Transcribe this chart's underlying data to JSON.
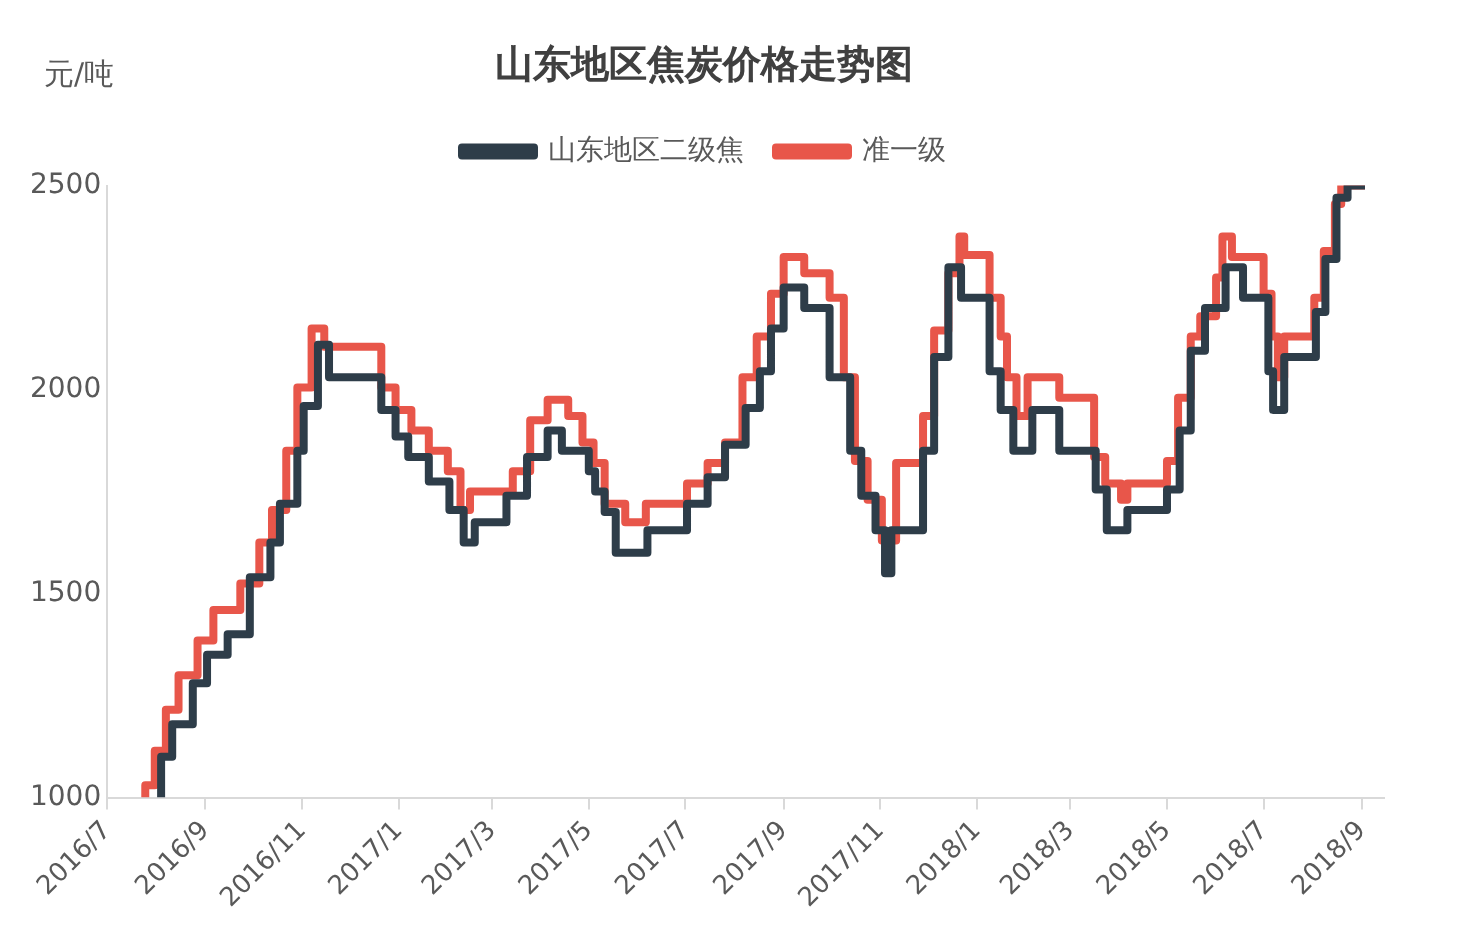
{
  "chart_data": {
    "type": "step",
    "title": "山东地区焦炭价格走势图",
    "ylabel": "元/吨",
    "legend": "top",
    "grid": false,
    "xlim": [
      "2016-07-01",
      "2018-09-15"
    ],
    "xticks": [
      {
        "value": "2016-07-01",
        "label": "2016/7"
      },
      {
        "value": "2016-09-01",
        "label": "2016/9"
      },
      {
        "value": "2016-11-01",
        "label": "2016/11"
      },
      {
        "value": "2017-01-01",
        "label": "2017/1"
      },
      {
        "value": "2017-03-01",
        "label": "2017/3"
      },
      {
        "value": "2017-05-01",
        "label": "2017/5"
      },
      {
        "value": "2017-07-01",
        "label": "2017/7"
      },
      {
        "value": "2017-09-01",
        "label": "2017/9"
      },
      {
        "value": "2017-11-01",
        "label": "2017/11"
      },
      {
        "value": "2018-01-01",
        "label": "2018/1"
      },
      {
        "value": "2018-03-01",
        "label": "2018/3"
      },
      {
        "value": "2018-05-01",
        "label": "2018/5"
      },
      {
        "value": "2018-07-01",
        "label": "2018/7"
      },
      {
        "value": "2018-09-01",
        "label": "2018/9"
      }
    ],
    "ylim": [
      1000,
      2500
    ],
    "yticks": [
      1000,
      1500,
      2000,
      2500
    ],
    "series": [
      {
        "name": "山东地区二级焦",
        "color": "#2e3d49",
        "x": [
          "2016-08-04",
          "2016-08-11",
          "2016-08-24",
          "2016-09-02",
          "2016-09-15",
          "2016-09-29",
          "2016-10-12",
          "2016-10-18",
          "2016-10-29",
          "2016-11-02",
          "2016-11-11",
          "2016-11-18",
          "2016-12-21",
          "2016-12-30",
          "2017-01-07",
          "2017-01-20",
          "2017-02-02",
          "2017-02-11",
          "2017-02-18",
          "2017-03-10",
          "2017-03-23",
          "2017-04-05",
          "2017-04-14",
          "2017-05-01",
          "2017-05-05",
          "2017-05-11",
          "2017-05-18",
          "2017-06-07",
          "2017-07-02",
          "2017-07-15",
          "2017-07-26",
          "2017-08-08",
          "2017-08-17",
          "2017-08-24",
          "2017-09-01",
          "2017-09-14",
          "2017-09-30",
          "2017-10-13",
          "2017-10-20",
          "2017-10-29",
          "2017-11-04",
          "2017-11-08",
          "2017-11-28",
          "2017-12-05",
          "2017-12-14",
          "2017-12-22",
          "2018-01-09",
          "2018-01-16",
          "2018-01-24",
          "2018-02-05",
          "2018-02-22",
          "2018-03-17",
          "2018-03-24",
          "2018-04-06",
          "2018-05-01",
          "2018-05-09",
          "2018-05-16",
          "2018-05-25",
          "2018-06-07",
          "2018-06-18",
          "2018-07-04",
          "2018-07-07",
          "2018-07-14",
          "2018-08-03",
          "2018-08-09",
          "2018-08-16",
          "2018-08-23",
          "2018-08-28",
          "2018-09-03"
        ],
        "values": [
          1000,
          1100,
          1180,
          1280,
          1350,
          1400,
          1540,
          1625,
          1720,
          1850,
          1960,
          2110,
          2030,
          1950,
          1885,
          1835,
          1775,
          1705,
          1625,
          1675,
          1740,
          1835,
          1900,
          1850,
          1800,
          1750,
          1700,
          1600,
          1655,
          1720,
          1785,
          1865,
          1955,
          2045,
          2150,
          2250,
          2200,
          2030,
          1850,
          1740,
          1655,
          1550,
          1655,
          1850,
          2080,
          2300,
          2225,
          2045,
          1950,
          1850,
          1950,
          1850,
          1755,
          1655,
          1705,
          1755,
          1900,
          2095,
          2200,
          2300,
          2225,
          2045,
          1950,
          2080,
          2190,
          2320,
          2470,
          2500,
          2500
        ]
      },
      {
        "name": "准一级",
        "color": "#e8564a",
        "x": [
          "2016-07-25",
          "2016-07-31",
          "2016-08-07",
          "2016-08-15",
          "2016-08-27",
          "2016-09-06",
          "2016-09-23",
          "2016-10-05",
          "2016-10-13",
          "2016-10-22",
          "2016-10-29",
          "2016-11-07",
          "2016-11-15",
          "2016-12-21",
          "2016-12-30",
          "2017-01-09",
          "2017-01-20",
          "2017-02-01",
          "2017-02-09",
          "2017-02-15",
          "2017-03-14",
          "2017-03-25",
          "2017-04-05",
          "2017-04-18",
          "2017-04-27",
          "2017-05-04",
          "2017-05-11",
          "2017-05-24",
          "2017-06-06",
          "2017-07-02",
          "2017-07-15",
          "2017-07-26",
          "2017-08-06",
          "2017-08-15",
          "2017-08-24",
          "2017-09-01",
          "2017-09-14",
          "2017-09-30",
          "2017-10-09",
          "2017-10-16",
          "2017-10-24",
          "2017-11-02",
          "2017-11-11",
          "2017-11-28",
          "2017-12-05",
          "2017-12-14",
          "2017-12-21",
          "2017-12-24",
          "2018-01-09",
          "2018-01-16",
          "2018-01-20",
          "2018-01-26",
          "2018-02-02",
          "2018-02-22",
          "2018-03-16",
          "2018-03-23",
          "2018-04-02",
          "2018-04-06",
          "2018-05-01",
          "2018-05-08",
          "2018-05-16",
          "2018-05-22",
          "2018-06-01",
          "2018-06-05",
          "2018-06-11",
          "2018-07-01",
          "2018-07-06",
          "2018-07-10",
          "2018-07-14",
          "2018-08-02",
          "2018-08-08",
          "2018-08-15",
          "2018-08-19",
          "2018-08-23",
          "2018-09-03"
        ],
        "values": [
          1000,
          1030,
          1115,
          1215,
          1300,
          1385,
          1460,
          1525,
          1625,
          1705,
          1850,
          2005,
          2150,
          2105,
          2005,
          1950,
          1900,
          1850,
          1800,
          1705,
          1750,
          1800,
          1925,
          1975,
          1935,
          1870,
          1820,
          1720,
          1675,
          1720,
          1770,
          1820,
          1870,
          2030,
          2130,
          2235,
          2325,
          2285,
          2225,
          2030,
          1825,
          1730,
          1630,
          1820,
          1935,
          2145,
          2285,
          2375,
          2330,
          2225,
          2130,
          2030,
          1935,
          2030,
          1980,
          1835,
          1770,
          1730,
          1770,
          1825,
          1980,
          2130,
          2180,
          2275,
          2375,
          2325,
          2235,
          2130,
          2030,
          2130,
          2225,
          2340,
          2455,
          2500,
          2500
        ]
      }
    ]
  }
}
